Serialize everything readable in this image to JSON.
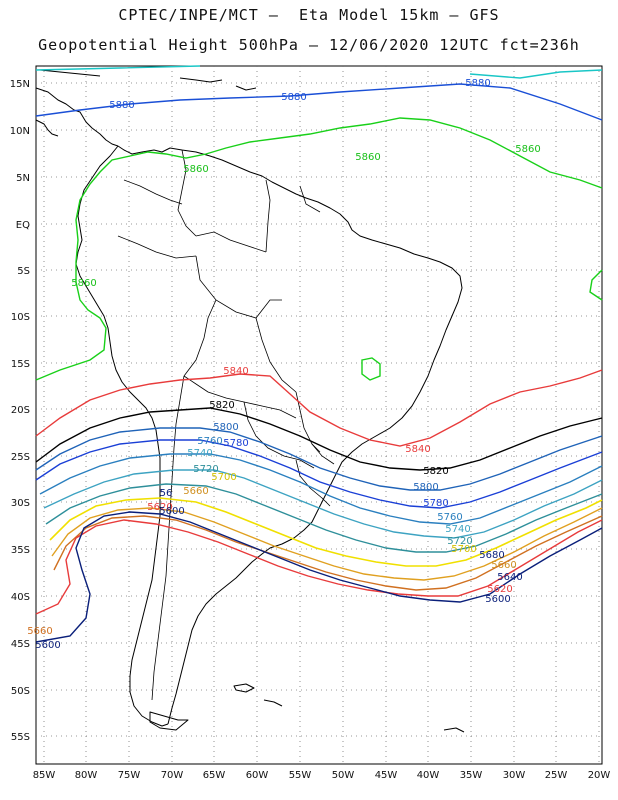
{
  "title_line1": "CPTEC/INPE/MCT –  Eta Model 15km – GFS",
  "title_line2": "Geopotential Height 500hPa – 12/06/2020 12UTC fct=236h",
  "lat_labels": [
    "15N",
    "10N",
    "5N",
    "EQ",
    "5S",
    "10S",
    "15S",
    "20S",
    "25S",
    "30S",
    "35S",
    "40S",
    "45S",
    "50S",
    "55S"
  ],
  "lon_labels": [
    "85W",
    "80W",
    "75W",
    "70W",
    "65W",
    "60W",
    "55W",
    "50W",
    "45W",
    "40W",
    "35W",
    "30W",
    "25W",
    "20W"
  ],
  "contours": [
    {
      "level": "5880",
      "color": "#19c6c6"
    },
    {
      "level": "5880",
      "color": "#1a4fd6"
    },
    {
      "level": "5860",
      "color": "#19d019"
    },
    {
      "level": "5840",
      "color": "#e83b3b"
    },
    {
      "level": "5820",
      "color": "#000000"
    },
    {
      "level": "5800",
      "color": "#1f63b8"
    },
    {
      "level": "5780",
      "color": "#1a3fd6"
    },
    {
      "level": "5760",
      "color": "#2a7fbf"
    },
    {
      "level": "5740",
      "color": "#3da3c2"
    },
    {
      "level": "5720",
      "color": "#2e8f9a"
    },
    {
      "level": "5700",
      "color": "#f0e000"
    },
    {
      "level": "5680",
      "color": "#e0a020"
    },
    {
      "level": "5660",
      "color": "#d07020"
    },
    {
      "level": "5620",
      "color": "#e83b3b"
    },
    {
      "level": "5600",
      "color": "#0a1f7a"
    }
  ],
  "contour_labels": [
    {
      "text": "5880",
      "color": "#1a4fd6"
    },
    {
      "text": "5880",
      "color": "#1a4fd6"
    },
    {
      "text": "5880",
      "color": "#1a4fd6"
    },
    {
      "text": "5860",
      "color": "#19c019"
    },
    {
      "text": "5860",
      "color": "#19c019"
    },
    {
      "text": "5860",
      "color": "#19c019"
    },
    {
      "text": "5860",
      "color": "#19c019"
    },
    {
      "text": "5840",
      "color": "#e83b3b"
    },
    {
      "text": "5840",
      "color": "#e83b3b"
    },
    {
      "text": "5820",
      "color": "#000000"
    },
    {
      "text": "5820",
      "color": "#000000"
    },
    {
      "text": "5800",
      "color": "#1f63b8"
    },
    {
      "text": "5800",
      "color": "#1f63b8"
    },
    {
      "text": "5780",
      "color": "#1a3fd6"
    },
    {
      "text": "5780",
      "color": "#1a3fd6"
    },
    {
      "text": "5760",
      "color": "#2a7fbf"
    },
    {
      "text": "5760",
      "color": "#2a7fbf"
    },
    {
      "text": "5740",
      "color": "#3da3c2"
    },
    {
      "text": "5740",
      "color": "#3da3c2"
    },
    {
      "text": "5720",
      "color": "#2e8f9a"
    },
    {
      "text": "5720",
      "color": "#2e8f9a"
    },
    {
      "text": "5700",
      "color": "#d4c200"
    },
    {
      "text": "5700",
      "color": "#d4c200"
    },
    {
      "text": "5680",
      "color": "#0a1f7a"
    },
    {
      "text": "5660",
      "color": "#d09020"
    },
    {
      "text": "5660",
      "color": "#d09020"
    },
    {
      "text": "5640",
      "color": "#0a1f7a"
    },
    {
      "text": "5620",
      "color": "#e83b3b"
    },
    {
      "text": "5620",
      "color": "#e83b3b"
    },
    {
      "text": "5600",
      "color": "#0a1f7a"
    },
    {
      "text": "5600",
      "color": "#0a1f7a"
    },
    {
      "text": "5600",
      "color": "#0a1f7a"
    },
    {
      "text": "5660",
      "color": "#d07020"
    },
    {
      "text": "56",
      "color": "#0a1f7a"
    }
  ]
}
